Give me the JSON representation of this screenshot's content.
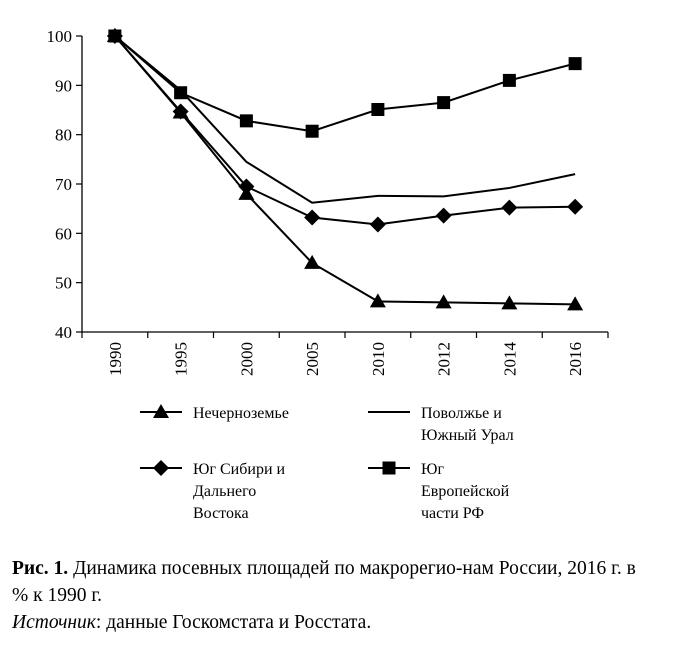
{
  "chart_data": {
    "type": "line",
    "title": "",
    "xlabel": "",
    "ylabel": "",
    "x": [
      "1990",
      "1995",
      "2000",
      "2005",
      "2010",
      "2012",
      "2014",
      "2016"
    ],
    "ylim": [
      40,
      100
    ],
    "yticks": [
      "100",
      "90",
      "80",
      "70",
      "60",
      "50",
      "40"
    ],
    "grid": false,
    "legend_position": "bottom",
    "series": [
      {
        "name": "Нечерноземье",
        "marker": "triangle",
        "values": [
          100,
          84.5,
          68,
          54,
          46.2,
          46,
          45.8,
          45.6
        ]
      },
      {
        "name": "Поволжье и Южный Урал",
        "marker": "none",
        "values": [
          100,
          89,
          74.5,
          66.2,
          67.6,
          67.5,
          69.2,
          72
        ]
      },
      {
        "name": "Юг Сибири и Дальнего Востока",
        "marker": "diamond",
        "values": [
          100,
          84.7,
          69.5,
          63.2,
          61.8,
          63.6,
          65.2,
          65.4
        ]
      },
      {
        "name": "Юг Европейской части РФ",
        "marker": "square",
        "values": [
          100,
          88.5,
          82.8,
          80.7,
          85.1,
          86.5,
          91,
          94.4
        ]
      }
    ]
  },
  "legend": [
    {
      "marker": "triangle",
      "lines": [
        "Нечерноземье"
      ]
    },
    {
      "marker": "none",
      "lines": [
        "Поволжье и",
        "Южный Урал"
      ]
    },
    {
      "marker": "diamond",
      "lines": [
        "Юг Сибири и",
        "Дальнего",
        "Востока"
      ]
    },
    {
      "marker": "square",
      "lines": [
        "Юг",
        "Европейской",
        "части РФ"
      ]
    }
  ],
  "caption": {
    "label": "Рис. 1.",
    "text": " Динамика посевных площадей по макрорегио-нам России, 2016 г. в % к 1990 г.",
    "source_label": "Источник",
    "source_text": ": данные Госкомстата и Росстата."
  }
}
